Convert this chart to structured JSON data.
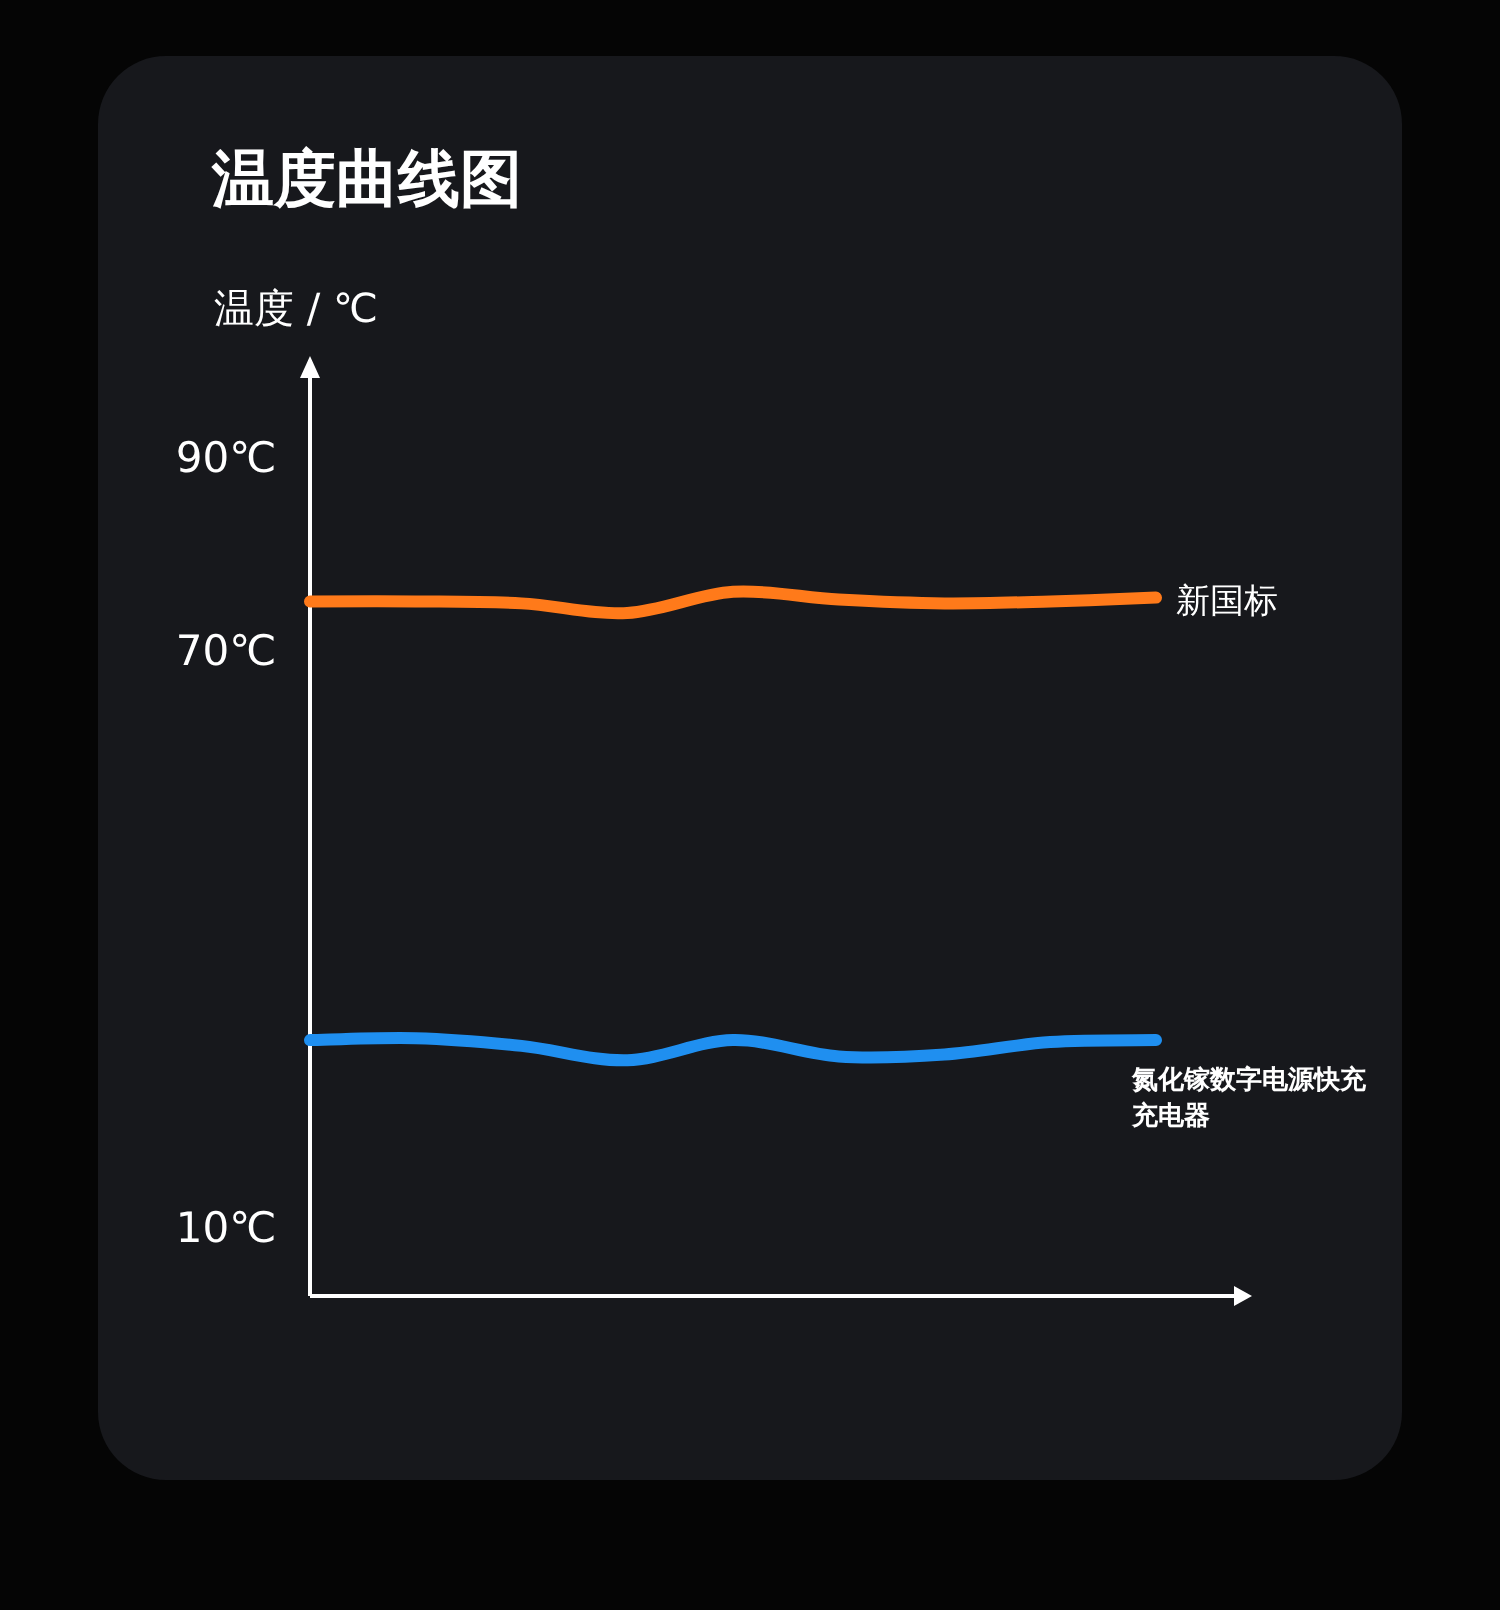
{
  "chart_data": {
    "type": "line",
    "title": "温度曲线图",
    "ylabel": "温度 / ℃",
    "categories": [
      null,
      null,
      null,
      null,
      null,
      null,
      null,
      null,
      null
    ],
    "ylim": [
      2.7,
      100
    ],
    "yticks": [
      {
        "value": 90,
        "label": "90℃"
      },
      {
        "value": 70,
        "label": "70℃"
      },
      {
        "value": 10,
        "label": "10℃"
      }
    ],
    "series": [
      {
        "name": "新国标",
        "color": "#ff7a1a",
        "values": [
          74.9,
          74.9,
          74.7,
          73.7,
          75.9,
          75.1,
          74.7,
          74.9,
          75.3
        ]
      },
      {
        "name": "氮化镓数字电源快充充电器",
        "color": "#1f8ff0",
        "values": [
          29.3,
          29.5,
          28.7,
          27.2,
          29.3,
          27.6,
          27.8,
          29.1,
          29.3
        ]
      }
    ]
  }
}
